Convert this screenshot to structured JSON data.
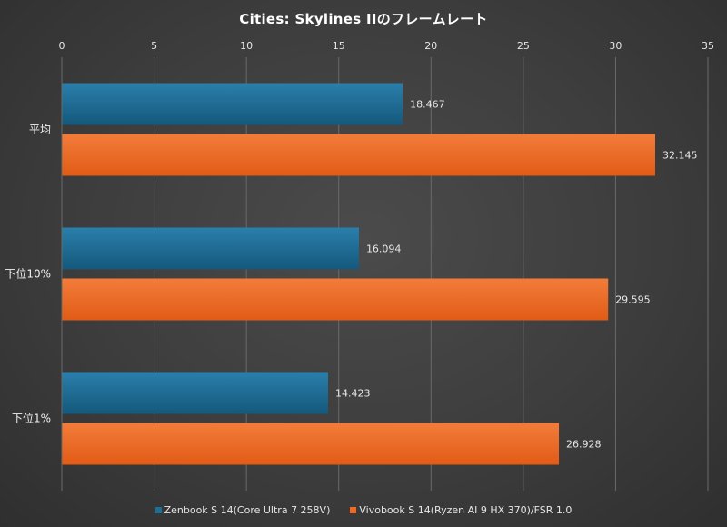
{
  "chart_data": {
    "type": "bar",
    "orientation": "horizontal",
    "title": "Cities: Skylines IIのフレームレート",
    "categories": [
      "平均",
      "下位10%",
      "下位1%"
    ],
    "series": [
      {
        "name": "Zenbook S 14(Core Ultra 7 258V)",
        "color": "#1f6e96",
        "values": [
          18.467,
          16.094,
          14.423
        ],
        "labels": [
          "18.467",
          "16.094",
          "14.423"
        ]
      },
      {
        "name": "Vivobook S 14(Ryzen AI 9 HX 370)/FSR 1.0",
        "color": "#ef6a25",
        "values": [
          32.145,
          29.595,
          26.928
        ],
        "labels": [
          "32.145",
          "29.595",
          "26.928"
        ]
      }
    ],
    "xlim": [
      0,
      35
    ],
    "xticks": [
      0,
      5,
      10,
      15,
      20,
      25,
      30,
      35
    ],
    "xtick_labels": [
      "0",
      "5",
      "10",
      "15",
      "20",
      "25",
      "30",
      "35"
    ],
    "axis_position": "top",
    "grid": true,
    "legend_position": "bottom"
  }
}
